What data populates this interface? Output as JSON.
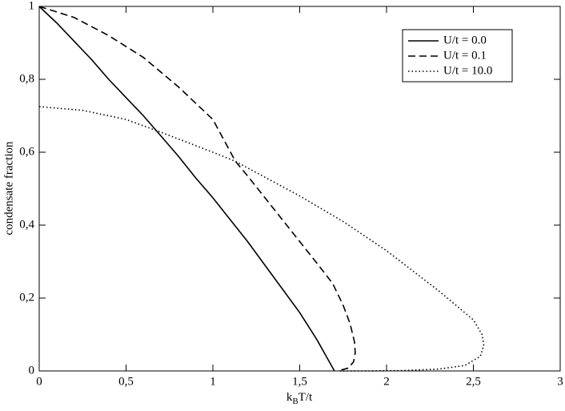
{
  "chart_data": {
    "type": "line",
    "xlabel": [
      "k",
      "B",
      "T/t"
    ],
    "ylabel": "condensate fraction",
    "xlim": [
      0,
      3
    ],
    "ylim": [
      0,
      1
    ],
    "xticks": [
      0,
      {
        "value": 0.5,
        "label": "0,5"
      },
      1,
      {
        "value": 1.5,
        "label": "1,5"
      },
      2,
      {
        "value": 2.5,
        "label": "2,5"
      },
      3
    ],
    "yticks": [
      0,
      {
        "value": 0.2,
        "label": "0,2"
      },
      {
        "value": 0.4,
        "label": "0,4"
      },
      {
        "value": 0.6,
        "label": "0,6"
      },
      {
        "value": 0.8,
        "label": "0,8"
      },
      1
    ],
    "legend": "upper right",
    "series": [
      {
        "name": "U/t = 0.0",
        "color": "#000000",
        "dash": "solid",
        "x": [
          0,
          0.1,
          0.2,
          0.3,
          0.4,
          0.5,
          0.6,
          0.7,
          0.8,
          0.9,
          1.0,
          1.1,
          1.2,
          1.3,
          1.4,
          1.5,
          1.6,
          1.7
        ],
        "values": [
          1,
          0.955,
          0.905,
          0.855,
          0.8,
          0.75,
          0.7,
          0.645,
          0.59,
          0.53,
          0.475,
          0.415,
          0.355,
          0.29,
          0.225,
          0.16,
          0.085,
          0
        ]
      },
      {
        "name": "U/t = 0.1",
        "color": "#000000",
        "dash": "dashed",
        "x": [
          0,
          0.2,
          0.4,
          0.6,
          0.8,
          1.0,
          1.13,
          1.2,
          1.3,
          1.4,
          1.5,
          1.6,
          1.69,
          1.75,
          1.79,
          1.815,
          1.82,
          1.81,
          1.78,
          1.72
        ],
        "values": [
          1,
          0.97,
          0.92,
          0.86,
          0.78,
          0.69,
          0.575,
          0.535,
          0.475,
          0.415,
          0.355,
          0.295,
          0.24,
          0.18,
          0.13,
          0.08,
          0.05,
          0.025,
          0.008,
          0
        ]
      },
      {
        "name": "U/t = 10.0",
        "color": "#000000",
        "dash": "dotted",
        "x": [
          0,
          0.25,
          0.5,
          0.7,
          1.0,
          1.13,
          1.5,
          1.75,
          2.0,
          2.3,
          2.5,
          2.55,
          2.56,
          2.54,
          2.45,
          2.3,
          2.1,
          1.9,
          1.72
        ],
        "values": [
          0.725,
          0.715,
          0.69,
          0.655,
          0.6,
          0.575,
          0.48,
          0.41,
          0.33,
          0.22,
          0.14,
          0.1,
          0.07,
          0.04,
          0.015,
          0.005,
          0.001,
          0,
          0
        ]
      }
    ]
  }
}
